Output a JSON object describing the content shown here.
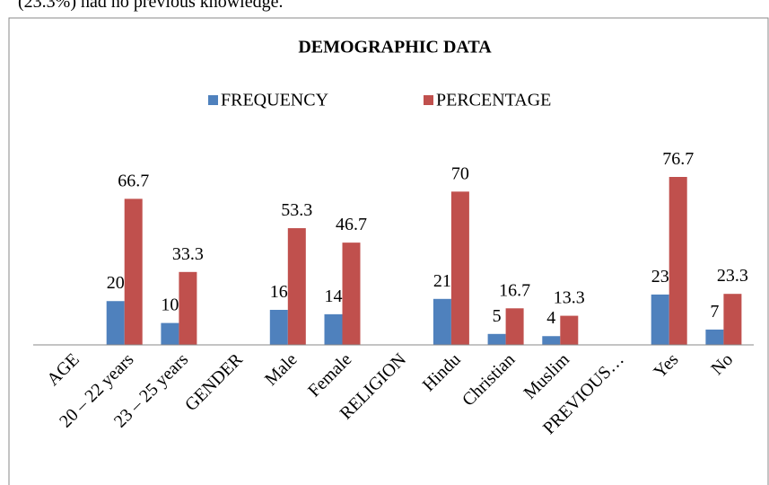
{
  "page_text": "(23.3%) had no previous knowledge.",
  "chart_data": {
    "type": "bar",
    "title": "DEMOGRAPHIC DATA",
    "categories": [
      "AGE",
      "20 – 22 years",
      "23 – 25 years",
      "GENDER",
      "Male",
      "Female",
      "RELIGION",
      "Hindu",
      "Christian",
      "Muslim",
      "PREVIOUS…",
      "Yes",
      "No"
    ],
    "series": [
      {
        "name": "FREQUENCY",
        "color": "#4f81bd",
        "values": [
          null,
          20,
          10,
          null,
          16,
          14,
          null,
          21,
          5,
          4,
          null,
          23,
          7
        ]
      },
      {
        "name": "PERCENTAGE",
        "color": "#c0504d",
        "values": [
          null,
          66.7,
          33.3,
          null,
          53.3,
          46.7,
          null,
          70,
          16.7,
          13.3,
          null,
          76.7,
          23.3
        ]
      }
    ],
    "legend": "top",
    "grid": false
  }
}
